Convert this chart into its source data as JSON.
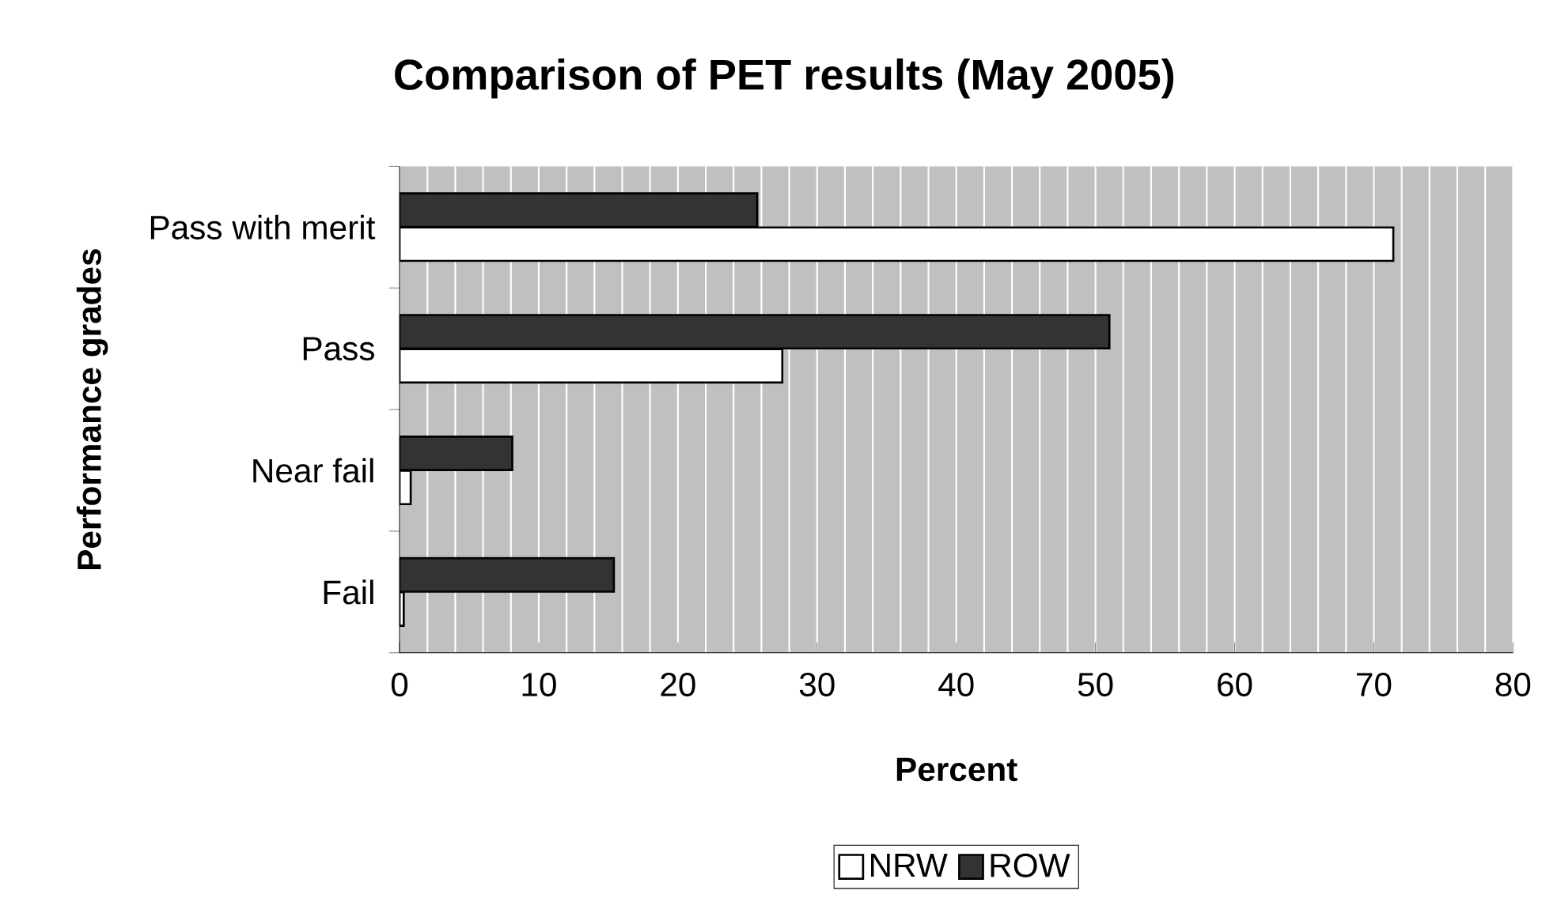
{
  "chart_data": {
    "type": "bar",
    "orientation": "horizontal",
    "title": "Comparison of PET results (May 2005)",
    "xlabel": "Percent",
    "ylabel": "Performance grades",
    "categories": [
      "Pass with merit",
      "Pass",
      "Near fail",
      "Fail"
    ],
    "series": [
      {
        "name": "NRW",
        "color": "#ffffff",
        "values": [
          71.4,
          27.5,
          0.8,
          0.3
        ]
      },
      {
        "name": "ROW",
        "color": "#333333",
        "values": [
          25.7,
          51,
          8.1,
          15.4
        ]
      }
    ],
    "xlim": [
      0,
      80
    ],
    "xticks": [
      0,
      {
        "value": 2,
        "label": null
      },
      {
        "value": 4,
        "label": null
      },
      {
        "value": 6,
        "label": null
      },
      {
        "value": 8,
        "label": null
      },
      10,
      {
        "value": 12,
        "label": null
      },
      {
        "value": 14,
        "label": null
      },
      {
        "value": 16,
        "label": null
      },
      {
        "value": 18,
        "label": null
      },
      20,
      {
        "value": 22,
        "label": null
      },
      {
        "value": 24,
        "label": null
      },
      {
        "value": 26,
        "label": null
      },
      {
        "value": 28,
        "label": null
      },
      30,
      {
        "value": 32,
        "label": null
      },
      {
        "value": 34,
        "label": null
      },
      {
        "value": 36,
        "label": null
      },
      {
        "value": 38,
        "label": null
      },
      40,
      {
        "value": 42,
        "label": null
      },
      {
        "value": 44,
        "label": null
      },
      {
        "value": 46,
        "label": null
      },
      {
        "value": 48,
        "label": null
      },
      50,
      {
        "value": 52,
        "label": null
      },
      {
        "value": 54,
        "label": null
      },
      {
        "value": 56,
        "label": null
      },
      {
        "value": 58,
        "label": null
      },
      60,
      {
        "value": 62,
        "label": null
      },
      {
        "value": 64,
        "label": null
      },
      {
        "value": 66,
        "label": null
      },
      {
        "value": 68,
        "label": null
      },
      70,
      {
        "value": 72,
        "label": null
      },
      {
        "value": 74,
        "label": null
      },
      {
        "value": 76,
        "label": null
      },
      {
        "value": 78,
        "label": null
      },
      80
    ],
    "grid": "x",
    "legend": "bottom"
  }
}
